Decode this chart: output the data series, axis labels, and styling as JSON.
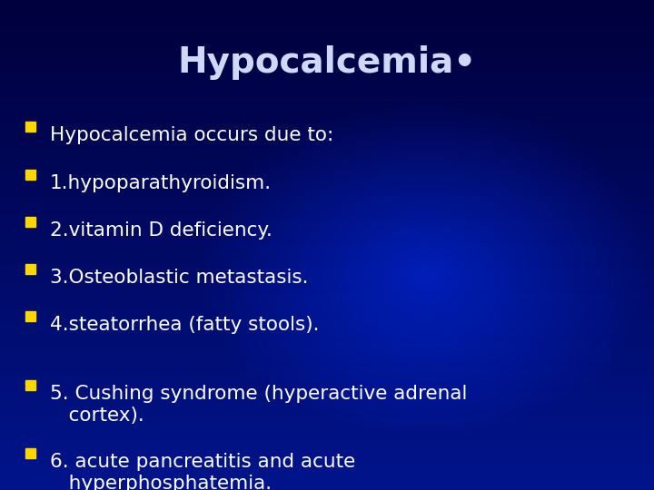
{
  "title": "Hypocalcemia•",
  "title_color": "#D0D8F8",
  "title_fontsize": 28,
  "title_fontweight": "bold",
  "bg_color_dark": "#000033",
  "bg_color_mid": "#0033AA",
  "bg_color_bright": "#0044CC",
  "bullet_color": "#FFD700",
  "text_color": "#FFFFFF",
  "text_fontsize": 15.5,
  "bullet_items": [
    "Hypocalcemia occurs due to:",
    "1.hypoparathyroidism.",
    "2.vitamin D deficiency.",
    "3.Osteoblastic metastasis.",
    "4.steatorrhea (fatty stools).",
    "5. Cushing syndrome (hyperactive adrenal\n   cortex).",
    "6. acute pancreatitis and acute\n   hyperphosphatemia."
  ]
}
